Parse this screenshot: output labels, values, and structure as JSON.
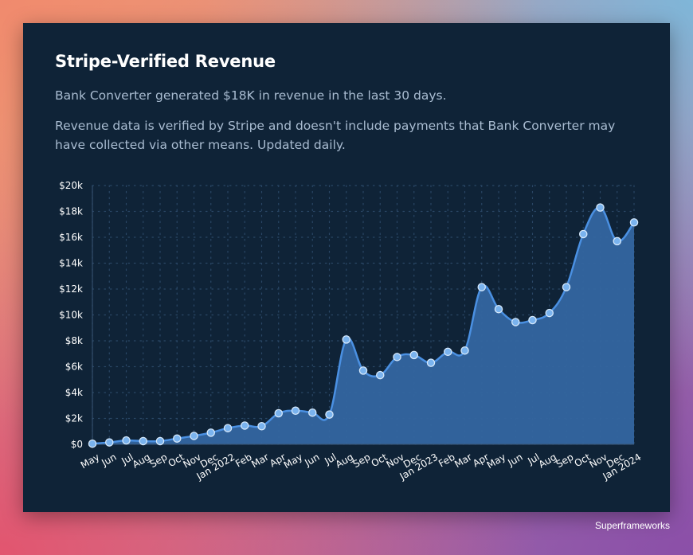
{
  "card": {
    "title": "Stripe-Verified Revenue",
    "summary": "Bank Converter generated $18K in revenue in the last 30 days.",
    "note": "Revenue data is verified by Stripe and doesn't include payments that Bank Converter may have collected via other means. Updated daily."
  },
  "watermark": "Superframeworks",
  "colors": {
    "card_bg": "#0f2337",
    "line": "#4a90e2",
    "area": "#3466a0",
    "marker_fill": "#7ab3ee",
    "marker_stroke": "#d5e8fb",
    "axis_text": "#ffffff",
    "grid_dot": "#2a4766"
  },
  "chart_data": {
    "type": "area",
    "title": "",
    "xlabel": "",
    "ylabel": "",
    "ylim": [
      0,
      20000
    ],
    "yticks": [
      0,
      2000,
      4000,
      6000,
      8000,
      10000,
      12000,
      14000,
      16000,
      18000,
      20000
    ],
    "ytick_labels": [
      "$0",
      "$2k",
      "$4k",
      "$6k",
      "$8k",
      "$10k",
      "$12k",
      "$14k",
      "$16k",
      "$18k",
      "$20k"
    ],
    "grid": "dotted",
    "legend": "none",
    "categories": [
      "May",
      "Jun",
      "Jul",
      "Aug",
      "Sep",
      "Oct",
      "Nov",
      "Dec",
      "Jan 2022",
      "Feb",
      "Mar",
      "Apr",
      "May",
      "Jun",
      "Jul",
      "Aug",
      "Sep",
      "Oct",
      "Nov",
      "Dec",
      "Jan 2023",
      "Feb",
      "Mar",
      "Apr",
      "May",
      "Jun",
      "Jul",
      "Aug",
      "Sep",
      "Oct",
      "Nov",
      "Dec",
      "Jan 2024"
    ],
    "series": [
      {
        "name": "Revenue",
        "values": [
          50,
          150,
          300,
          250,
          250,
          450,
          650,
          900,
          1250,
          1450,
          1400,
          2400,
          2600,
          2450,
          2300,
          8100,
          5700,
          5350,
          6750,
          6900,
          6300,
          7150,
          7250,
          12150,
          10450,
          9450,
          9600,
          10150,
          12150,
          16250,
          18300,
          15700,
          17150
        ]
      }
    ]
  }
}
